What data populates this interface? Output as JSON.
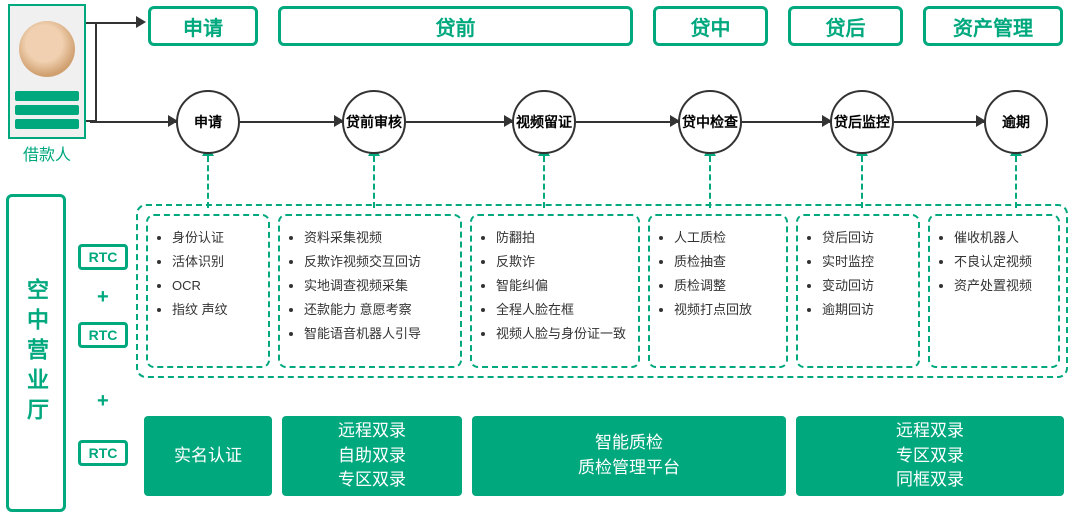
{
  "colors": {
    "primary": "#00a87e",
    "text": "#333333",
    "white": "#ffffff"
  },
  "borrower_label": "借款人",
  "side_title": "空中营业厅",
  "rtc_label": "RTC",
  "stages": {
    "apply": "申请",
    "pre": "贷前",
    "mid": "贷中",
    "post": "贷后",
    "asset": "资产管理"
  },
  "circles": {
    "c1": "申请",
    "c2": "贷前审核",
    "c3": "视频留证",
    "c4": "贷中检查",
    "c5": "贷后监控",
    "c6": "逾期"
  },
  "features": {
    "f1": [
      "身份认证",
      "活体识别",
      "OCR",
      "指纹 声纹"
    ],
    "f2": [
      "资料采集视频",
      "反欺诈视频交互回访",
      "实地调查视频采集",
      "还款能力 意愿考察",
      "智能语音机器人引导"
    ],
    "f3": [
      "防翻拍",
      "反欺诈",
      "智能纠偏",
      "全程人脸在框",
      "视频人脸与身份证一致"
    ],
    "f4": [
      "人工质检",
      "质检抽查",
      "质检调整",
      "视频打点回放"
    ],
    "f5": [
      "贷后回访",
      "实时监控",
      "变动回访",
      "逾期回访"
    ],
    "f6": [
      "催收机器人",
      "不良认定视频",
      "资产处置视频"
    ]
  },
  "solutions": {
    "s1": [
      "实名认证"
    ],
    "s2": [
      "远程双录",
      "自助双录",
      "专区双录"
    ],
    "s3": [
      "智能质检",
      "质检管理平台"
    ],
    "s4": [
      "远程双录",
      "专区双录",
      "同框双录"
    ]
  }
}
